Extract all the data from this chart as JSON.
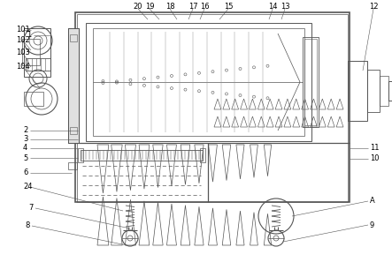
{
  "bg_color": "#ffffff",
  "line_color": "#555555",
  "label_color": "#000000",
  "fig_width": 4.43,
  "fig_height": 3.14,
  "dpi": 100
}
